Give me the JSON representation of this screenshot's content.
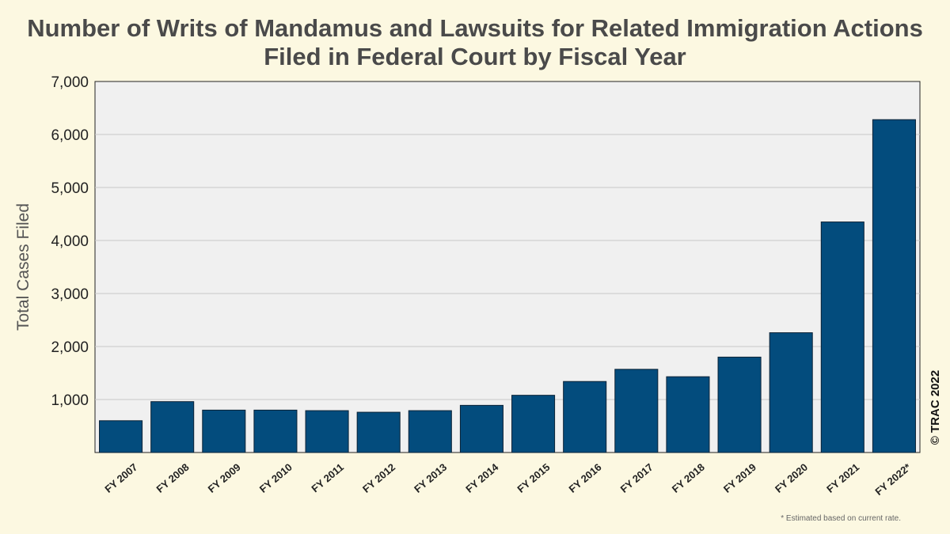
{
  "chart_data": {
    "type": "bar",
    "title_lines": [
      "Number of Writs of Mandamus and Lawsuits for Related Immigration Actions",
      "Filed in Federal Court by Fiscal Year"
    ],
    "ylabel": "Total Cases Filed",
    "xlabel": "",
    "ylim": [
      0,
      7000
    ],
    "yticks": [
      1000,
      2000,
      3000,
      4000,
      5000,
      6000,
      7000
    ],
    "ytick_labels": [
      "1,000",
      "2,000",
      "3,000",
      "4,000",
      "5,000",
      "6,000",
      "7,000"
    ],
    "categories": [
      "FY 2007",
      "FY 2008",
      "FY 2009",
      "FY 2010",
      "FY 2011",
      "FY 2012",
      "FY 2013",
      "FY 2014",
      "FY 2015",
      "FY 2016",
      "FY 2017",
      "FY 2018",
      "FY 2019",
      "FY 2020",
      "FY 2021",
      "FY 2022*"
    ],
    "values": [
      600,
      960,
      800,
      800,
      790,
      760,
      790,
      890,
      1080,
      1340,
      1570,
      1430,
      1800,
      2260,
      4350,
      6280
    ],
    "grid": true,
    "legend": "none",
    "bar_color": "#034c7d",
    "plot_background": "#f0f0f0",
    "page_background": "#fcf8e1",
    "copyright": "© TRAC 2022",
    "footnote": "* Estimated based on current rate."
  }
}
